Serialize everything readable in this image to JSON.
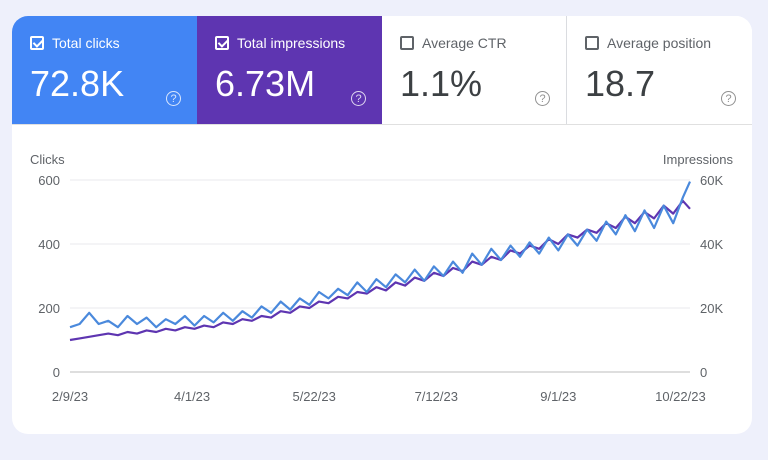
{
  "tiles": [
    {
      "label": "Total clicks",
      "value": "72.8K",
      "checked": true,
      "help": "?"
    },
    {
      "label": "Total impressions",
      "value": "6.73M",
      "checked": true,
      "help": "?"
    },
    {
      "label": "Average CTR",
      "value": "1.1%",
      "checked": false,
      "help": "?"
    },
    {
      "label": "Average position",
      "value": "18.7",
      "checked": false,
      "help": "?"
    }
  ],
  "colors": {
    "clicks": "#4a89dc",
    "impressions": "#5e35b1",
    "grid": "#e8eaed",
    "bg": "#eef0fb"
  },
  "chart_data": {
    "type": "line",
    "ylabel": "Clicks",
    "y2label": "Impressions",
    "ylim": [
      0,
      600
    ],
    "y2lim": [
      0,
      60000
    ],
    "yticks": [
      "0",
      "200",
      "400",
      "600"
    ],
    "y2ticks": [
      "0",
      "20K",
      "40K",
      "60K"
    ],
    "xticks": [
      "2/9/23",
      "4/1/23",
      "5/22/23",
      "7/12/23",
      "9/1/23",
      "10/22/23"
    ],
    "x_start": "2/9/23",
    "x_end": "10/26/23",
    "grid": true,
    "series": [
      {
        "name": "Clicks",
        "axis": "left",
        "points": [
          [
            "2/9/23",
            140
          ],
          [
            "2/13/23",
            150
          ],
          [
            "2/17/23",
            185
          ],
          [
            "2/21/23",
            150
          ],
          [
            "2/25/23",
            160
          ],
          [
            "3/1/23",
            140
          ],
          [
            "3/5/23",
            175
          ],
          [
            "3/9/23",
            150
          ],
          [
            "3/13/23",
            170
          ],
          [
            "3/17/23",
            140
          ],
          [
            "3/21/23",
            165
          ],
          [
            "3/25/23",
            150
          ],
          [
            "3/29/23",
            175
          ],
          [
            "4/2/23",
            145
          ],
          [
            "4/6/23",
            175
          ],
          [
            "4/10/23",
            155
          ],
          [
            "4/14/23",
            185
          ],
          [
            "4/18/23",
            160
          ],
          [
            "4/22/23",
            190
          ],
          [
            "4/26/23",
            170
          ],
          [
            "4/30/23",
            205
          ],
          [
            "5/4/23",
            185
          ],
          [
            "5/8/23",
            220
          ],
          [
            "5/12/23",
            195
          ],
          [
            "5/16/23",
            230
          ],
          [
            "5/20/23",
            210
          ],
          [
            "5/24/23",
            250
          ],
          [
            "5/28/23",
            230
          ],
          [
            "6/1/23",
            260
          ],
          [
            "6/5/23",
            240
          ],
          [
            "6/9/23",
            280
          ],
          [
            "6/13/23",
            250
          ],
          [
            "6/17/23",
            290
          ],
          [
            "6/21/23",
            265
          ],
          [
            "6/25/23",
            305
          ],
          [
            "6/29/23",
            280
          ],
          [
            "7/3/23",
            320
          ],
          [
            "7/7/23",
            285
          ],
          [
            "7/11/23",
            330
          ],
          [
            "7/15/23",
            300
          ],
          [
            "7/19/23",
            345
          ],
          [
            "7/23/23",
            310
          ],
          [
            "7/27/23",
            370
          ],
          [
            "7/31/23",
            335
          ],
          [
            "8/4/23",
            385
          ],
          [
            "8/8/23",
            350
          ],
          [
            "8/12/23",
            395
          ],
          [
            "8/16/23",
            360
          ],
          [
            "8/20/23",
            405
          ],
          [
            "8/24/23",
            370
          ],
          [
            "8/28/23",
            420
          ],
          [
            "9/1/23",
            380
          ],
          [
            "9/5/23",
            430
          ],
          [
            "9/9/23",
            395
          ],
          [
            "9/13/23",
            445
          ],
          [
            "9/17/23",
            410
          ],
          [
            "9/21/23",
            470
          ],
          [
            "9/25/23",
            430
          ],
          [
            "9/29/23",
            490
          ],
          [
            "10/3/23",
            440
          ],
          [
            "10/7/23",
            505
          ],
          [
            "10/11/23",
            450
          ],
          [
            "10/15/23",
            520
          ],
          [
            "10/19/23",
            465
          ],
          [
            "10/23/23",
            545
          ],
          [
            "10/26/23",
            595
          ]
        ]
      },
      {
        "name": "Impressions",
        "axis": "right",
        "points": [
          [
            "2/9/23",
            10000
          ],
          [
            "2/13/23",
            10500
          ],
          [
            "2/17/23",
            11000
          ],
          [
            "2/21/23",
            11500
          ],
          [
            "2/25/23",
            12000
          ],
          [
            "3/1/23",
            11500
          ],
          [
            "3/5/23",
            12500
          ],
          [
            "3/9/23",
            12000
          ],
          [
            "3/13/23",
            13000
          ],
          [
            "3/17/23",
            12500
          ],
          [
            "3/21/23",
            13500
          ],
          [
            "3/25/23",
            13000
          ],
          [
            "3/29/23",
            14000
          ],
          [
            "4/2/23",
            13500
          ],
          [
            "4/6/23",
            14500
          ],
          [
            "4/10/23",
            14000
          ],
          [
            "4/14/23",
            15500
          ],
          [
            "4/18/23",
            15000
          ],
          [
            "4/22/23",
            16500
          ],
          [
            "4/26/23",
            16000
          ],
          [
            "4/30/23",
            17500
          ],
          [
            "5/4/23",
            17000
          ],
          [
            "5/8/23",
            19000
          ],
          [
            "5/12/23",
            18500
          ],
          [
            "5/16/23",
            20500
          ],
          [
            "5/20/23",
            20000
          ],
          [
            "5/24/23",
            22000
          ],
          [
            "5/28/23",
            21500
          ],
          [
            "6/1/23",
            23500
          ],
          [
            "6/5/23",
            23000
          ],
          [
            "6/9/23",
            25000
          ],
          [
            "6/13/23",
            24500
          ],
          [
            "6/17/23",
            26500
          ],
          [
            "6/21/23",
            25500
          ],
          [
            "6/25/23",
            28000
          ],
          [
            "6/29/23",
            27000
          ],
          [
            "7/3/23",
            29500
          ],
          [
            "7/7/23",
            28500
          ],
          [
            "7/11/23",
            31000
          ],
          [
            "7/15/23",
            30000
          ],
          [
            "7/19/23",
            32500
          ],
          [
            "7/23/23",
            31500
          ],
          [
            "7/27/23",
            34500
          ],
          [
            "7/31/23",
            33500
          ],
          [
            "8/4/23",
            36000
          ],
          [
            "8/8/23",
            35000
          ],
          [
            "8/12/23",
            38000
          ],
          [
            "8/16/23",
            37000
          ],
          [
            "8/20/23",
            39500
          ],
          [
            "8/24/23",
            38500
          ],
          [
            "8/28/23",
            41500
          ],
          [
            "9/1/23",
            40000
          ],
          [
            "9/5/23",
            43000
          ],
          [
            "9/9/23",
            42000
          ],
          [
            "9/13/23",
            44500
          ],
          [
            "9/17/23",
            43500
          ],
          [
            "9/21/23",
            46500
          ],
          [
            "9/25/23",
            45000
          ],
          [
            "9/29/23",
            48500
          ],
          [
            "10/3/23",
            46500
          ],
          [
            "10/7/23",
            50000
          ],
          [
            "10/11/23",
            48000
          ],
          [
            "10/15/23",
            52000
          ],
          [
            "10/19/23",
            49500
          ],
          [
            "10/23/23",
            53500
          ],
          [
            "10/26/23",
            51000
          ]
        ]
      }
    ]
  }
}
